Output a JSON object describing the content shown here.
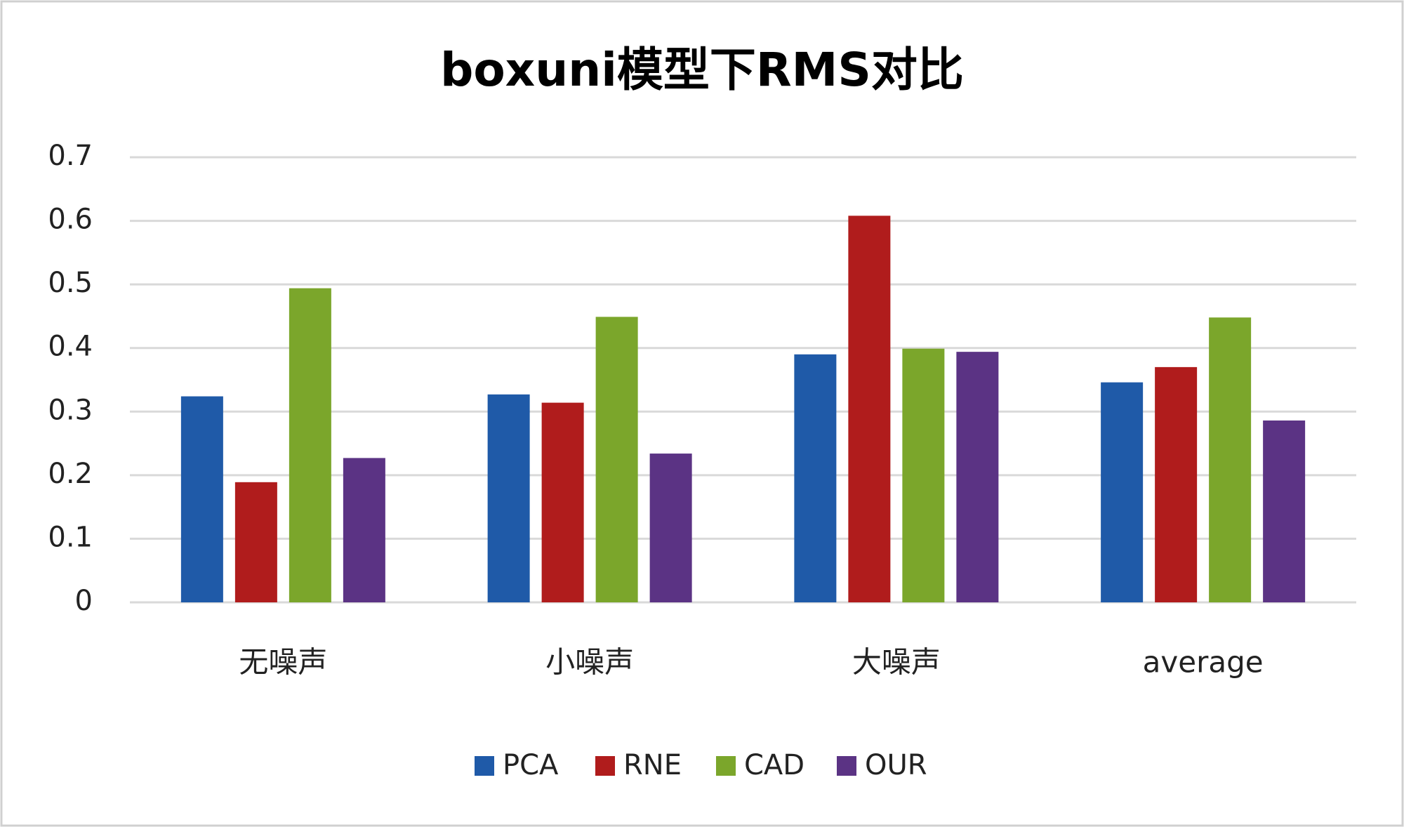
{
  "chart_data": {
    "type": "bar",
    "title": "boxuni模型下RMS对比",
    "categories": [
      "无噪声",
      "小噪声",
      "大噪声",
      "average"
    ],
    "series": [
      {
        "name": "PCA",
        "color": "#1f5aa8",
        "values": [
          0.324,
          0.327,
          0.39,
          0.346
        ]
      },
      {
        "name": "RNE",
        "color": "#b01c1c",
        "values": [
          0.189,
          0.314,
          0.608,
          0.37
        ]
      },
      {
        "name": "CAD",
        "color": "#7ba62b",
        "values": [
          0.494,
          0.449,
          0.399,
          0.448
        ]
      },
      {
        "name": "OUR",
        "color": "#5b3384",
        "values": [
          0.227,
          0.234,
          0.394,
          0.286
        ]
      }
    ],
    "ylim": [
      0,
      0.7
    ],
    "yticks": [
      0,
      0.1,
      0.2,
      0.3,
      0.4,
      0.5,
      0.6,
      0.7
    ],
    "grid": true,
    "legend": "bottom"
  }
}
